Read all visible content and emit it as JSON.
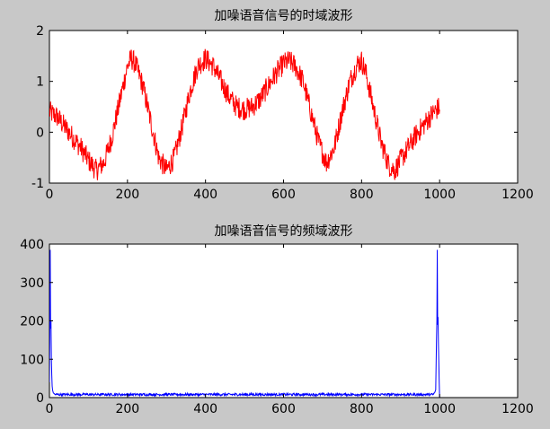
{
  "figure": {
    "background": "#c8c8c8"
  },
  "chart_data": [
    {
      "type": "line",
      "title": "加噪语音信号的时域波形",
      "xlabel": "",
      "ylabel": "",
      "xlim": [
        0,
        1200
      ],
      "ylim": [
        -1,
        2
      ],
      "xticks": [
        0,
        200,
        400,
        600,
        800,
        1000,
        1200
      ],
      "yticks": [
        -1,
        0,
        1,
        2
      ],
      "grid": false,
      "series": [
        {
          "color": "#ff0000",
          "noise_amplitude": 0.22,
          "x": [
            0,
            20,
            40,
            60,
            80,
            100,
            120,
            140,
            160,
            180,
            200,
            210,
            220,
            240,
            260,
            280,
            300,
            320,
            340,
            360,
            380,
            400,
            420,
            440,
            460,
            480,
            500,
            520,
            540,
            560,
            580,
            600,
            615,
            630,
            650,
            670,
            690,
            710,
            730,
            750,
            770,
            790,
            800,
            810,
            830,
            850,
            870,
            885,
            900,
            920,
            940,
            960,
            980,
            1000
          ],
          "y": [
            0.4,
            0.3,
            0.1,
            -0.1,
            -0.3,
            -0.55,
            -0.75,
            -0.6,
            -0.1,
            0.6,
            1.3,
            1.45,
            1.35,
            0.9,
            0.2,
            -0.5,
            -0.75,
            -0.5,
            0.1,
            0.8,
            1.3,
            1.45,
            1.3,
            1.0,
            0.7,
            0.5,
            0.45,
            0.5,
            0.65,
            0.9,
            1.15,
            1.35,
            1.4,
            1.3,
            1.0,
            0.4,
            -0.2,
            -0.6,
            -0.3,
            0.4,
            1.0,
            1.35,
            1.4,
            1.2,
            0.5,
            -0.2,
            -0.65,
            -0.75,
            -0.55,
            -0.3,
            -0.05,
            0.15,
            0.35,
            0.5
          ]
        }
      ]
    },
    {
      "type": "line",
      "title": "加噪语音信号的频域波形",
      "xlabel": "",
      "ylabel": "",
      "xlim": [
        0,
        1200
      ],
      "ylim": [
        0,
        400
      ],
      "xticks": [
        0,
        200,
        400,
        600,
        800,
        1000,
        1200
      ],
      "yticks": [
        0,
        100,
        200,
        300,
        400
      ],
      "grid": false,
      "series": [
        {
          "color": "#0000ff",
          "noise_floor": 8,
          "x": [
            0,
            1,
            2,
            3,
            4,
            5,
            6,
            7,
            8,
            10,
            13,
            20,
            100,
            300,
            500,
            700,
            900,
            980,
            987,
            990,
            992,
            993,
            994,
            995,
            996,
            997,
            998,
            999,
            1000
          ],
          "y": [
            40,
            160,
            385,
            180,
            200,
            100,
            60,
            30,
            20,
            12,
            10,
            9,
            8,
            8,
            8,
            8,
            8,
            10,
            12,
            20,
            150,
            200,
            385,
            190,
            210,
            140,
            90,
            40,
            0
          ]
        }
      ]
    }
  ]
}
